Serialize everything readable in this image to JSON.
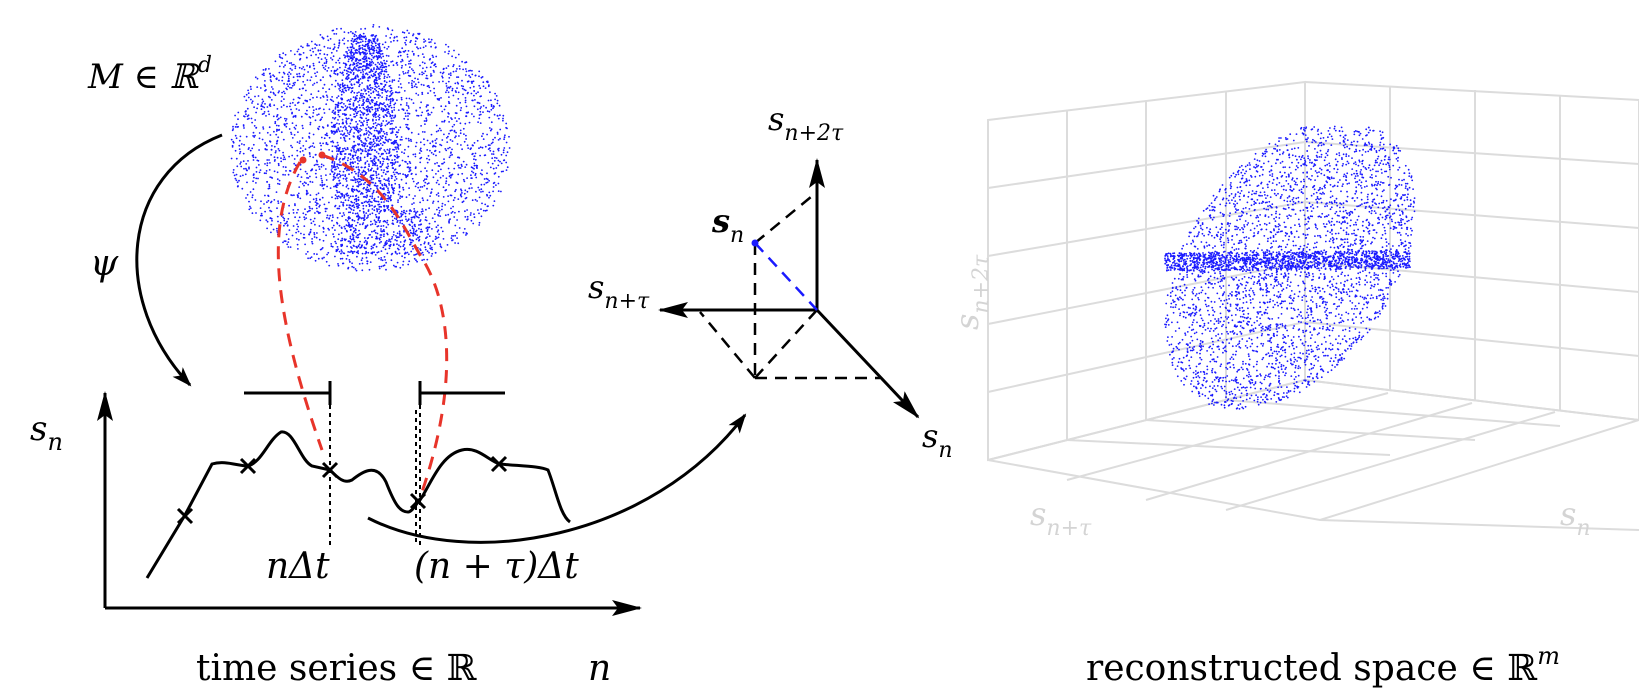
{
  "left_panel": {
    "manifold_label": "M ∈ ℝ",
    "manifold_sup": "d",
    "map_label": "ψ",
    "yaxis_label": "s",
    "yaxis_sub": "n",
    "time_label_1": "nΔt",
    "time_label_2": "(n + τ)Δt",
    "xaxis_caption": "time series ∈ ℝ",
    "xaxis_var": "n"
  },
  "embedding_axes": {
    "top_label": "s",
    "top_sub": "n+2τ",
    "left_label": "s",
    "left_sub": "n+τ",
    "right_label": "s",
    "right_sub": "n",
    "vector_label": "s",
    "vector_sub": "n"
  },
  "right_panel": {
    "zlabel": "s",
    "zlabel_sub": "n+2τ",
    "xlabel": "s",
    "xlabel_sub": "n+τ",
    "ylabel": "s",
    "ylabel_sub": "n",
    "caption": "reconstructed space ∈ ℝ",
    "caption_sup": "m"
  },
  "colors": {
    "attractor": "#1a1aff",
    "red_dashes": "#e8342a",
    "vector": "#1a1aff",
    "grid": "#dcdcdc"
  }
}
